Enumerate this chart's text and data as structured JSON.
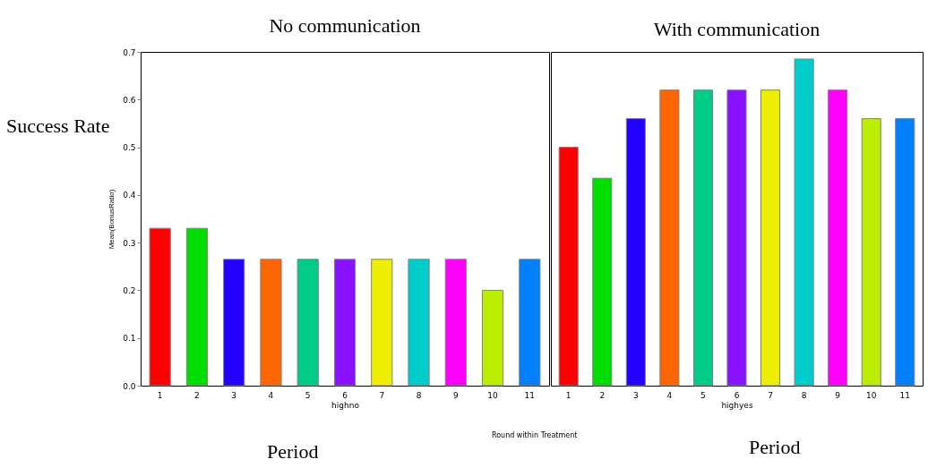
{
  "chart_data": [
    {
      "type": "bar",
      "title": "No communication",
      "xlabel": "highno",
      "ylabel": "Mean(BonusRatio)",
      "annotations": [
        "Success Rate",
        "Round within Treatment",
        "Period"
      ],
      "categories": [
        "1",
        "2",
        "3",
        "4",
        "5",
        "6",
        "7",
        "8",
        "9",
        "10",
        "11"
      ],
      "values": [
        0.33,
        0.33,
        0.265,
        0.265,
        0.265,
        0.265,
        0.265,
        0.265,
        0.265,
        0.2,
        0.265
      ],
      "colors": [
        "#ff0000",
        "#00dd00",
        "#2200ff",
        "#ff6600",
        "#00cc88",
        "#8811ff",
        "#eeee00",
        "#00cccc",
        "#ff00ff",
        "#bbee00",
        "#0080ff"
      ],
      "ylim": [
        0,
        0.7
      ],
      "yticks": [
        {
          "value": 0,
          "label": "0.0"
        },
        0.1,
        0.2,
        0.3,
        0.4,
        0.5,
        0.6,
        0.7
      ]
    },
    {
      "type": "bar",
      "title": "With communication",
      "xlabel": "highyes",
      "annotations": [
        "Period"
      ],
      "tick_labels": "x",
      "categories": [
        "1",
        "2",
        "3",
        "4",
        "5",
        "6",
        "7",
        "8",
        "9",
        "10",
        "11"
      ],
      "values": [
        0.5,
        0.435,
        0.56,
        0.62,
        0.62,
        0.62,
        0.62,
        0.685,
        0.62,
        0.56,
        0.56
      ],
      "colors": [
        "#ff0000",
        "#00dd00",
        "#2200ff",
        "#ff6600",
        "#00cc88",
        "#8811ff",
        "#eeee00",
        "#00cccc",
        "#ff00ff",
        "#bbee00",
        "#0080ff"
      ],
      "ylim": [
        0,
        0.7
      ]
    }
  ]
}
